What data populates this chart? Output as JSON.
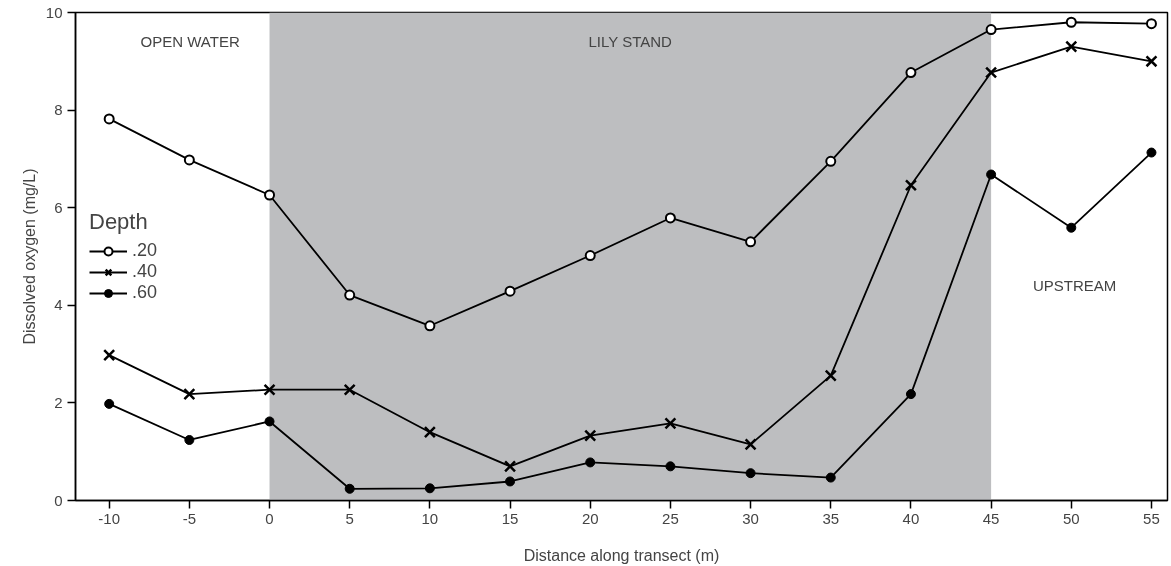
{
  "chart_data": {
    "type": "line",
    "xlabel": "Distance along transect (m)",
    "ylabel": "Dissolved oxygen (mg/L)",
    "legend_title": "Depth",
    "legend": "left",
    "x": [
      -10,
      -5,
      0,
      5,
      10,
      15,
      20,
      25,
      30,
      35,
      40,
      45,
      50,
      55
    ],
    "series": [
      {
        "name": ".20",
        "color": "#000000",
        "marker": "circle_open",
        "values": [
          7.82,
          6.98,
          6.26,
          4.21,
          3.58,
          4.29,
          5.02,
          5.79,
          5.3,
          6.95,
          8.77,
          9.65,
          9.8,
          9.77
        ]
      },
      {
        "name": ".40",
        "color": "#000000",
        "marker": "cross",
        "values": [
          2.98,
          2.18,
          2.27,
          2.27,
          1.4,
          0.7,
          1.33,
          1.58,
          1.15,
          2.56,
          6.46,
          8.77,
          9.3,
          9.0
        ]
      },
      {
        "name": ".60",
        "color": "#000000",
        "marker": "circle",
        "values": [
          1.98,
          1.24,
          1.62,
          0.24,
          0.25,
          0.39,
          0.78,
          0.7,
          0.56,
          0.47,
          2.18,
          6.68,
          5.59,
          7.13
        ]
      }
    ],
    "bands": [
      {
        "axis": "x",
        "from": 0,
        "to": 45,
        "label": "LILY STAND",
        "color": "#bdbec0"
      }
    ],
    "annotations": [
      "OPEN WATER",
      "UPSTREAM"
    ],
    "xlim": [
      -12.1,
      56
    ],
    "ylim": [
      0,
      10
    ],
    "xticks": [
      -10,
      -5,
      0,
      5,
      10,
      15,
      20,
      25,
      30,
      35,
      40,
      45,
      50,
      55
    ],
    "yticks": [
      0,
      2,
      4,
      6,
      8,
      10
    ],
    "grid": false
  }
}
